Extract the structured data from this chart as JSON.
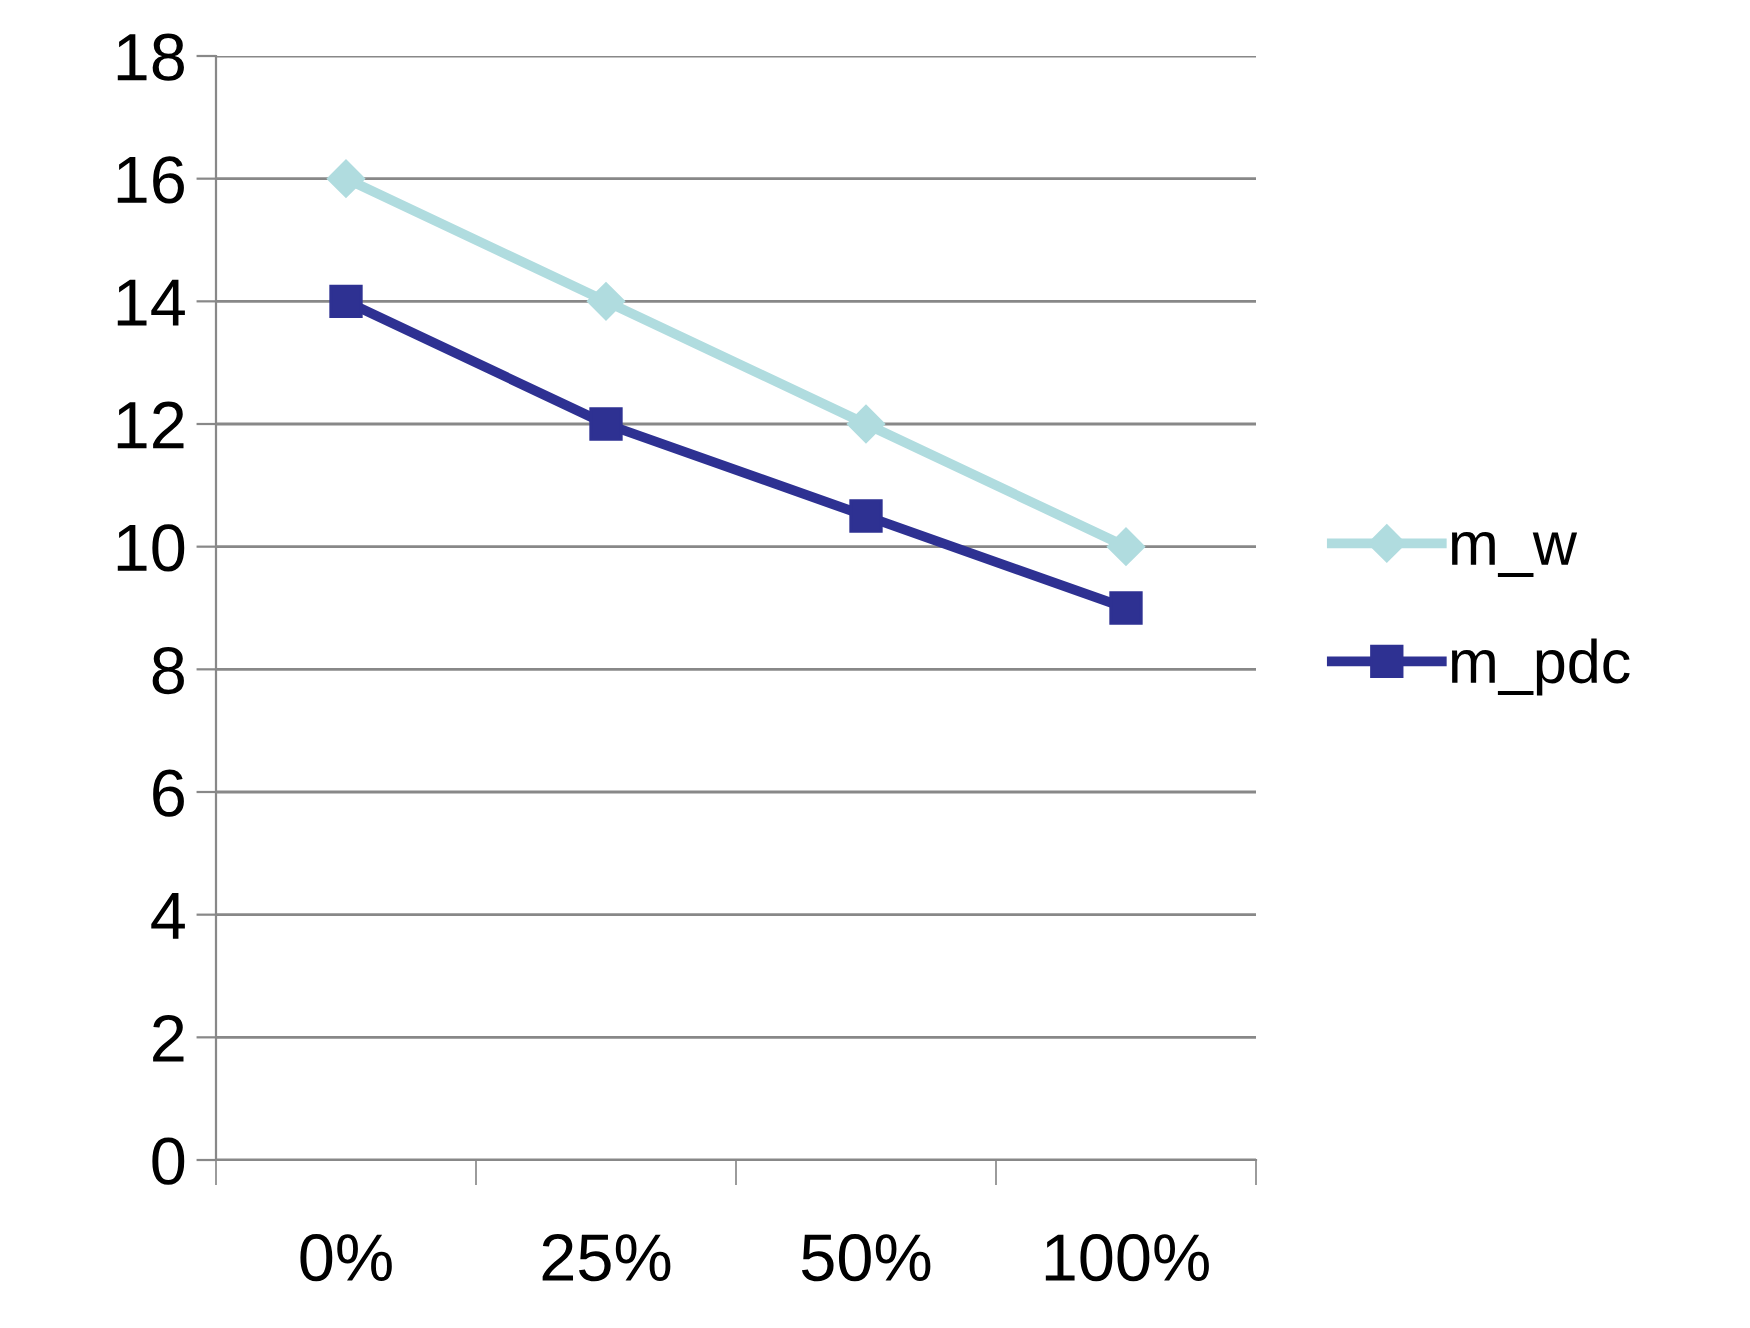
{
  "chart_data": {
    "type": "line",
    "categories": [
      "0%",
      "25%",
      "50%",
      "100%"
    ],
    "series": [
      {
        "name": "m_w",
        "color": "#b0dcdf",
        "values": [
          16,
          14,
          12,
          10
        ],
        "marker": "diamond"
      },
      {
        "name": "m_pdc",
        "color": "#2e3192",
        "values": [
          14,
          12,
          10.5,
          9
        ],
        "marker": "square"
      }
    ],
    "ylim": [
      0,
      18
    ],
    "yticks": [
      0,
      2,
      4,
      6,
      8,
      10,
      12,
      14,
      16,
      18
    ],
    "grid": "y",
    "legend": "right",
    "line_style": "solid"
  }
}
